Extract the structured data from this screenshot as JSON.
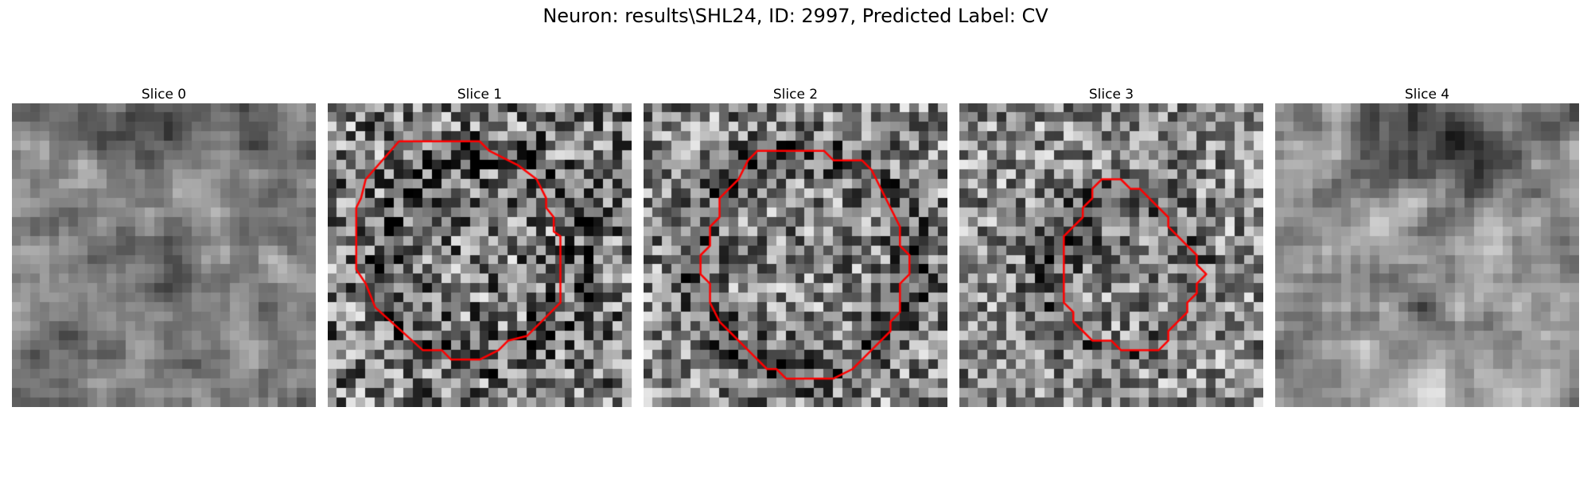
{
  "figure": {
    "title": "Neuron: results\\SHL24, ID: 2997, Predicted Label: CV"
  },
  "outline_color": "#ff0000",
  "slices": [
    {
      "label": "Slice 0",
      "has_outline": false
    },
    {
      "label": "Slice 1",
      "has_outline": true
    },
    {
      "label": "Slice 2",
      "has_outline": true
    },
    {
      "label": "Slice 3",
      "has_outline": true
    },
    {
      "label": "Slice 4",
      "has_outline": false
    }
  ]
}
